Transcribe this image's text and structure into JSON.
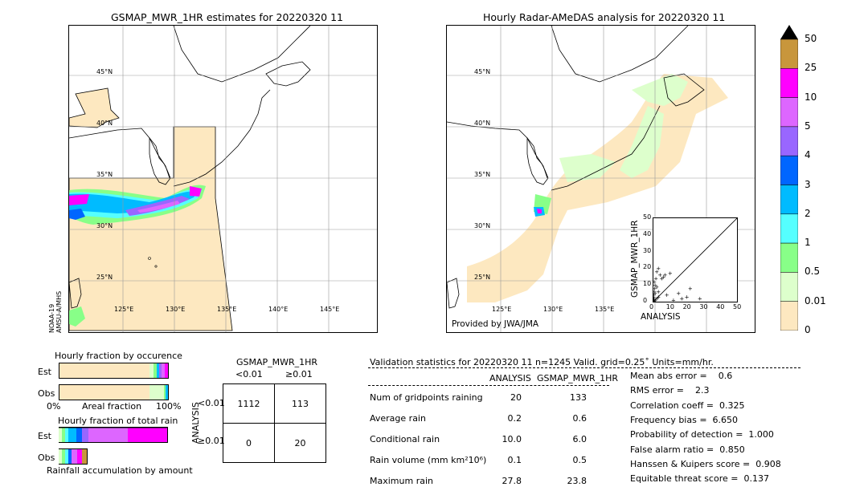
{
  "left_map": {
    "title": "GSMAP_MWR_1HR estimates for 20220320 11",
    "satellite": "NOAA-19\nAMSU-A/MHS",
    "lat_labels": [
      "45°N",
      "40°N",
      "35°N",
      "30°N",
      "25°N"
    ],
    "lon_labels": [
      "125°E",
      "130°E",
      "135°E",
      "140°E",
      "145°E"
    ]
  },
  "right_map": {
    "title": "Hourly Radar-AMeDAS analysis for 20220320 11",
    "credit": "Provided by JWA/JMA",
    "lat_labels": [
      "45°N",
      "40°N",
      "35°N",
      "30°N",
      "25°N"
    ],
    "lon_labels": [
      "125°E",
      "130°E",
      "135°E"
    ]
  },
  "colorbar": {
    "labels": [
      "50",
      "25",
      "10",
      "5",
      "4",
      "3",
      "2",
      "1",
      "0.5",
      "0.01",
      "0"
    ],
    "colors": [
      "#c8963c",
      "#ff00ff",
      "#dd66ff",
      "#9966ff",
      "#0066ff",
      "#00bbff",
      "#55ffff",
      "#88ff88",
      "#ddffcc",
      "#fde8c0"
    ]
  },
  "scatter": {
    "xlabel": "ANALYSIS",
    "ylabel": "GSMAP_MWR_1HR",
    "ticks": [
      "0",
      "10",
      "20",
      "30",
      "40",
      "50"
    ]
  },
  "chart_data": {
    "type": "scatter",
    "xlabel": "ANALYSIS",
    "ylabel": "GSMAP_MWR_1HR",
    "xlim": [
      0,
      50
    ],
    "ylim": [
      0,
      50
    ],
    "points": [
      [
        0.2,
        2
      ],
      [
        0.3,
        4
      ],
      [
        0.5,
        6
      ],
      [
        0.8,
        8
      ],
      [
        1,
        10
      ],
      [
        0.5,
        12
      ],
      [
        1.5,
        14
      ],
      [
        2,
        9
      ],
      [
        3,
        6
      ],
      [
        0.2,
        1
      ],
      [
        0.4,
        3
      ],
      [
        1,
        5
      ],
      [
        2,
        18
      ],
      [
        3,
        20
      ],
      [
        5,
        14
      ],
      [
        4,
        16
      ],
      [
        7,
        16
      ],
      [
        8,
        4
      ],
      [
        6,
        15
      ],
      [
        10,
        17
      ],
      [
        12,
        1
      ],
      [
        15,
        5
      ],
      [
        17,
        2
      ],
      [
        20,
        3
      ],
      [
        27.8,
        2
      ],
      [
        22,
        8
      ],
      [
        1,
        1
      ],
      [
        2,
        2
      ],
      [
        0.5,
        0.5
      ],
      [
        3,
        3
      ]
    ]
  },
  "fraction_occurrence": {
    "title": "Hourly fraction by occurence",
    "rows": [
      "Est",
      "Obs"
    ],
    "axis_left": "0%",
    "axis_mid": "Areal fraction",
    "axis_right": "100%"
  },
  "fraction_total": {
    "title": "Hourly fraction of total rain",
    "rows": [
      "Est",
      "Obs"
    ],
    "caption": "Rainfall accumulation by amount"
  },
  "contingency": {
    "title": "GSMAP_MWR_1HR",
    "col_headers": [
      "<0.01",
      "≥0.01"
    ],
    "row_axis": "ANALYSIS",
    "row_headers": [
      "<0.01",
      "≥0.01"
    ],
    "cells": [
      [
        "1112",
        "113"
      ],
      [
        "0",
        "20"
      ]
    ]
  },
  "validation": {
    "header": "Validation statistics for 20220320 11  n=1245 Valid. grid=0.25˚ Units=mm/hr.",
    "col1": "ANALYSIS",
    "col2": "GSMAP_MWR_1HR",
    "rows": [
      {
        "label": "Num of gridpoints raining",
        "a": "20",
        "b": "133"
      },
      {
        "label": "Average rain",
        "a": "0.2",
        "b": "0.6"
      },
      {
        "label": "Conditional rain",
        "a": "10.0",
        "b": "6.0"
      },
      {
        "label": "Rain volume (mm km²10⁶)",
        "a": "0.1",
        "b": "0.5"
      },
      {
        "label": "Maximum rain",
        "a": "27.8",
        "b": "23.8"
      }
    ],
    "scores": [
      "Mean abs error =    0.6",
      "RMS error =    2.3",
      "Correlation coeff =  0.325",
      "Frequency bias =  6.650",
      "Probability of detection =  1.000",
      "False alarm ratio =  0.850",
      "Hanssen & Kuipers score =  0.908",
      "Equitable threat score =  0.137"
    ]
  }
}
